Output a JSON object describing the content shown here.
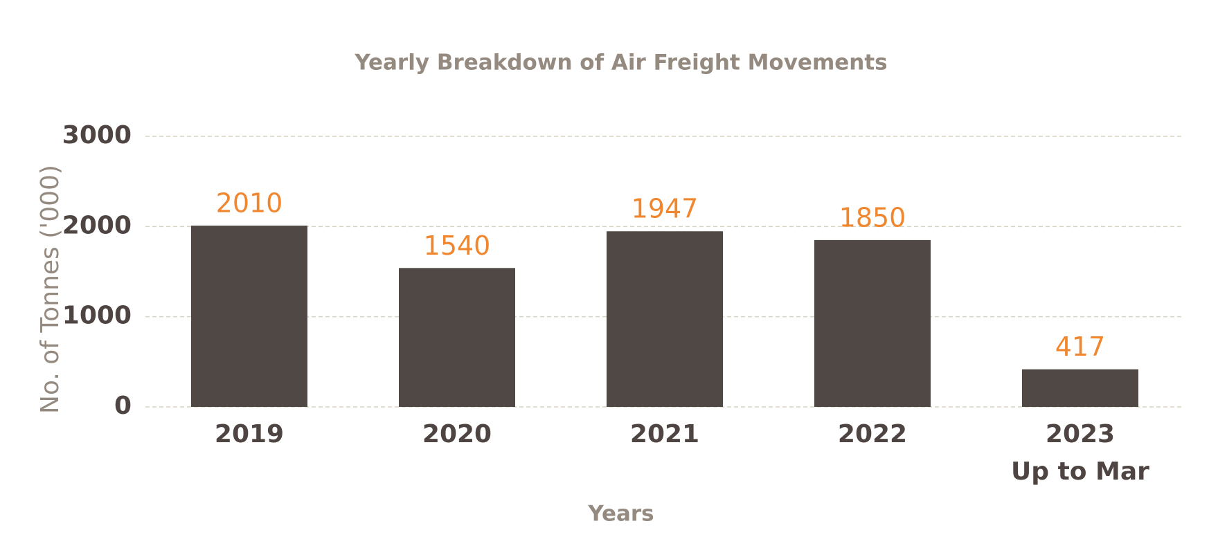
{
  "chart_data": {
    "type": "bar",
    "title": "Yearly Breakdown of Air Freight Movements",
    "x_label": "Years",
    "y_label": "No. of Tonnes ('000)",
    "categories": [
      "2019",
      "2020",
      "2021",
      "2022",
      "2023\nUp to Mar"
    ],
    "values": [
      2010,
      1540,
      1947,
      1850,
      417
    ],
    "color": "#504844",
    "value_label_color": "#f0872e",
    "ylim": [
      0,
      3000
    ],
    "yticks": [
      0,
      1000,
      2000,
      3000
    ],
    "grid": true
  }
}
